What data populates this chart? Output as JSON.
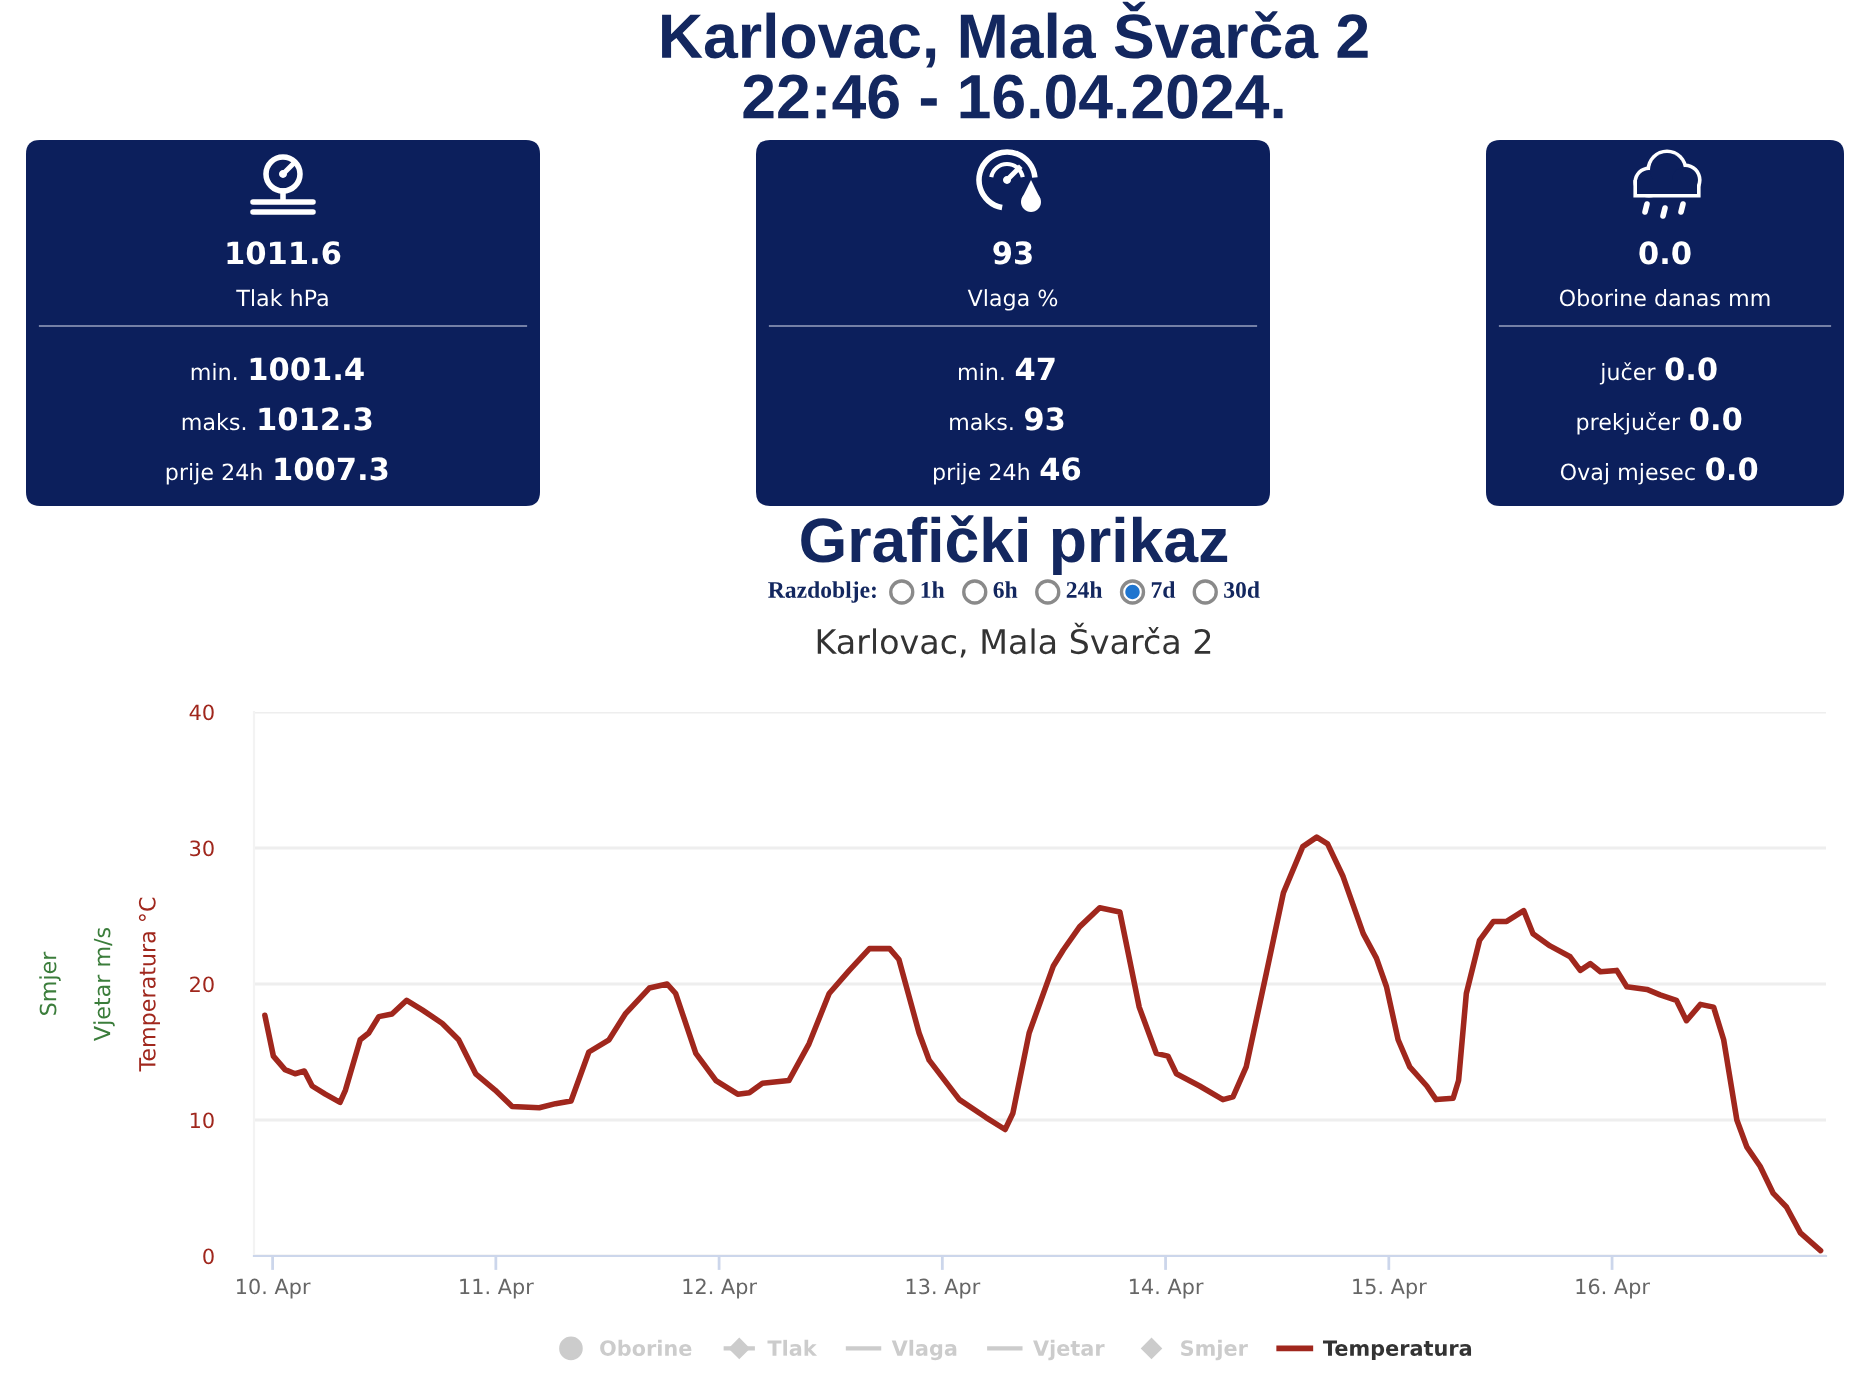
{
  "chart_data": [
    {
      "type": "other",
      "title": "Karlovac, Mala Švarča 2",
      "subtitle": "22:46 - 16.04.2024."
    },
    {
      "type": "other",
      "categories": [
        "Tlak hPa",
        "min.",
        "maks.",
        "prije 24h"
      ],
      "values": [
        1011.6,
        1001.4,
        1012.3,
        1007.3
      ],
      "data_labels": true,
      "color": "#0c1f5c"
    },
    {
      "type": "other",
      "categories": [
        "Vlaga %",
        "min.",
        "maks.",
        "prije 24h"
      ],
      "values": [
        93,
        47,
        93,
        46
      ],
      "data_labels": true,
      "color": "#0c1f5c"
    },
    {
      "type": "other",
      "categories": [
        "Oborine danas mm",
        "jučer",
        "prekjučer",
        "Ovaj mjesec"
      ],
      "values": [
        0.0,
        0.0,
        0.0,
        0.0
      ],
      "value_labels": [
        "0.0",
        "0.0",
        "0.0",
        "0.0"
      ],
      "color": "#0c1f5c"
    },
    {
      "type": "other",
      "title": "Grafički prikaz",
      "annotations": [
        "Razdoblje:"
      ],
      "categories": [
        "1h",
        "6h",
        "24h",
        "7d",
        "30d"
      ],
      "colors": [
        "#ffffff",
        "#ffffff",
        "#ffffff",
        "#1f75cf",
        "#ffffff"
      ]
    },
    {
      "type": "line",
      "title": "Karlovac, Mala Švarča 2",
      "ylabel": "Temperatura °C",
      "y2label": "Vjetar m/s",
      "y3label": "Smjer",
      "xlim": [
        "2024-04-09T22:00",
        "2024-04-16T23:00"
      ],
      "xticks": [
        {
          "value": "2024-04-10",
          "label": "10. Apr"
        },
        {
          "value": "2024-04-11",
          "label": "11. Apr"
        },
        {
          "value": "2024-04-12",
          "label": "12. Apr"
        },
        {
          "value": "2024-04-13",
          "label": "13. Apr"
        },
        {
          "value": "2024-04-14",
          "label": "14. Apr"
        },
        {
          "value": "2024-04-15",
          "label": "15. Apr"
        },
        {
          "value": "2024-04-16",
          "label": "16. Apr"
        }
      ],
      "ylim": [
        0,
        40
      ],
      "yticks": [
        0,
        10,
        20,
        30,
        40
      ],
      "grid": "y",
      "legend": "bottom",
      "series": [
        {
          "name": "Oborine",
          "type": "scatter",
          "marker": "circle",
          "color": "#cccccc"
        },
        {
          "name": "Tlak",
          "type": "line",
          "marker": "diamond",
          "line_style": "dashed",
          "color": "#cccccc"
        },
        {
          "name": "Vlaga",
          "type": "line",
          "color": "#cccccc"
        },
        {
          "name": "Vjetar",
          "type": "line",
          "color": "#cccccc"
        },
        {
          "name": "Smjer",
          "type": "scatter",
          "marker": "diamond",
          "color": "#cccccc"
        },
        {
          "name": "Temperatura",
          "type": "line",
          "color": "#a0271d",
          "x": [
            "2024-04-09T23:10",
            "2024-04-10T00:05",
            "2024-04-10T01:20",
            "2024-04-10T02:25",
            "2024-04-10T03:25",
            "2024-04-10T04:15",
            "2024-04-10T05:40",
            "2024-04-10T07:15",
            "2024-04-10T07:50",
            "2024-04-10T09:25",
            "2024-04-10T10:20",
            "2024-04-10T11:25",
            "2024-04-10T12:50",
            "2024-04-10T14:25",
            "2024-04-10T16:05",
            "2024-04-10T18:15",
            "2024-04-10T20:00",
            "2024-04-10T21:50",
            "2024-04-10T23:55",
            "2024-04-11T01:45",
            "2024-04-11T04:40",
            "2024-04-11T06:25",
            "2024-04-11T08:05",
            "2024-04-11T10:00",
            "2024-04-11T12:10",
            "2024-04-11T13:55",
            "2024-04-11T16:30",
            "2024-04-11T18:25",
            "2024-04-11T19:20",
            "2024-04-11T21:30",
            "2024-04-11T23:40",
            "2024-04-12T02:00",
            "2024-04-12T03:15",
            "2024-04-12T04:40",
            "2024-04-12T07:30",
            "2024-04-12T09:40",
            "2024-04-12T11:50",
            "2024-04-12T14:00",
            "2024-04-12T16:10",
            "2024-04-12T18:20",
            "2024-04-12T19:20",
            "2024-04-12T21:30",
            "2024-04-12T22:35",
            "2024-04-13T01:50",
            "2024-04-13T04:40",
            "2024-04-13T06:45",
            "2024-04-13T07:35",
            "2024-04-13T09:20",
            "2024-04-13T11:55",
            "2024-04-13T13:00",
            "2024-04-13T14:45",
            "2024-04-13T16:55",
            "2024-04-13T19:05",
            "2024-04-13T21:10",
            "2024-04-13T23:00",
            "2024-04-14T00:15",
            "2024-04-14T01:10",
            "2024-04-14T03:40",
            "2024-04-14T06:10",
            "2024-04-14T07:15",
            "2024-04-14T08:40",
            "2024-04-14T10:50",
            "2024-04-14T12:40",
            "2024-04-14T14:45",
            "2024-04-14T16:15",
            "2024-04-14T17:25",
            "2024-04-14T19:05",
            "2024-04-14T21:15",
            "2024-04-14T22:40",
            "2024-04-14T23:45",
            "2024-04-15T01:00",
            "2024-04-15T02:15",
            "2024-04-15T04:05",
            "2024-04-15T05:05",
            "2024-04-15T06:55",
            "2024-04-15T07:30",
            "2024-04-15T08:20",
            "2024-04-15T09:45",
            "2024-04-15T11:15",
            "2024-04-15T12:40",
            "2024-04-15T14:30",
            "2024-04-15T15:30",
            "2024-04-15T17:20",
            "2024-04-15T19:30",
            "2024-04-15T20:35",
            "2024-04-15T21:40",
            "2024-04-15T22:45",
            "2024-04-16T00:30",
            "2024-04-16T01:35",
            "2024-04-16T03:45",
            "2024-04-16T05:10",
            "2024-04-16T06:55",
            "2024-04-16T08:00",
            "2024-04-16T09:30",
            "2024-04-16T10:55",
            "2024-04-16T12:00",
            "2024-04-16T13:25",
            "2024-04-16T14:30",
            "2024-04-16T15:55",
            "2024-04-16T17:20",
            "2024-04-16T18:45",
            "2024-04-16T20:15",
            "2024-04-16T22:25"
          ],
          "values": [
            17.7,
            14.7,
            13.7,
            13.4,
            13.6,
            12.5,
            11.9,
            11.3,
            12.2,
            15.9,
            16.4,
            17.6,
            17.8,
            18.8,
            18.1,
            17.1,
            15.9,
            13.4,
            12.2,
            11.0,
            10.9,
            11.2,
            11.4,
            15.0,
            15.9,
            17.8,
            19.7,
            20.0,
            19.3,
            14.9,
            12.9,
            11.9,
            12.0,
            12.7,
            12.9,
            15.6,
            19.3,
            21.0,
            22.6,
            22.6,
            21.8,
            16.4,
            14.4,
            11.5,
            10.2,
            9.3,
            10.5,
            16.4,
            21.3,
            22.5,
            24.2,
            25.6,
            25.3,
            18.3,
            14.9,
            14.7,
            13.4,
            12.5,
            11.5,
            11.7,
            13.9,
            20.8,
            26.7,
            30.1,
            30.8,
            30.3,
            27.9,
            23.7,
            21.9,
            19.8,
            15.9,
            13.9,
            12.5,
            11.5,
            11.6,
            12.9,
            19.3,
            23.2,
            24.6,
            24.6,
            25.4,
            23.7,
            22.8,
            22.0,
            21.0,
            21.5,
            20.9,
            21.0,
            19.8,
            19.6,
            19.2,
            18.8,
            17.3,
            18.5,
            18.3,
            15.9,
            10.0,
            8.0,
            6.6,
            4.6,
            3.6,
            1.7,
            0.4
          ]
        }
      ]
    }
  ]
}
